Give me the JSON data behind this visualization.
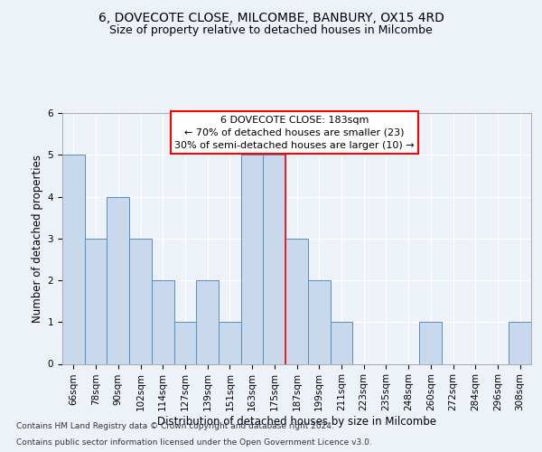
{
  "title1": "6, DOVECOTE CLOSE, MILCOMBE, BANBURY, OX15 4RD",
  "title2": "Size of property relative to detached houses in Milcombe",
  "xlabel": "Distribution of detached houses by size in Milcombe",
  "ylabel": "Number of detached properties",
  "categories": [
    "66sqm",
    "78sqm",
    "90sqm",
    "102sqm",
    "114sqm",
    "127sqm",
    "139sqm",
    "151sqm",
    "163sqm",
    "175sqm",
    "187sqm",
    "199sqm",
    "211sqm",
    "223sqm",
    "235sqm",
    "248sqm",
    "260sqm",
    "272sqm",
    "284sqm",
    "296sqm",
    "308sqm"
  ],
  "values": [
    5,
    3,
    4,
    3,
    2,
    1,
    2,
    1,
    5,
    5,
    3,
    2,
    1,
    0,
    0,
    0,
    1,
    0,
    0,
    0,
    1
  ],
  "bar_color": "#c9d9ed",
  "bar_edge_color": "#5b8db8",
  "red_line_x": 9.5,
  "annotation_text": "6 DOVECOTE CLOSE: 183sqm\n← 70% of detached houses are smaller (23)\n30% of semi-detached houses are larger (10) →",
  "ylim": [
    0,
    6
  ],
  "yticks": [
    0,
    1,
    2,
    3,
    4,
    5,
    6
  ],
  "footer1": "Contains HM Land Registry data © Crown copyright and database right 2024.",
  "footer2": "Contains public sector information licensed under the Open Government Licence v3.0.",
  "bg_color": "#edf2f9",
  "plot_bg_color": "#edf2f9",
  "grid_color": "#ffffff",
  "spine_color": "#aaaaaa",
  "title1_fontsize": 10,
  "title2_fontsize": 9,
  "ylabel_fontsize": 8.5,
  "xlabel_fontsize": 8.5,
  "tick_fontsize": 7.5,
  "annotation_fontsize": 8,
  "footer_fontsize": 6.5
}
